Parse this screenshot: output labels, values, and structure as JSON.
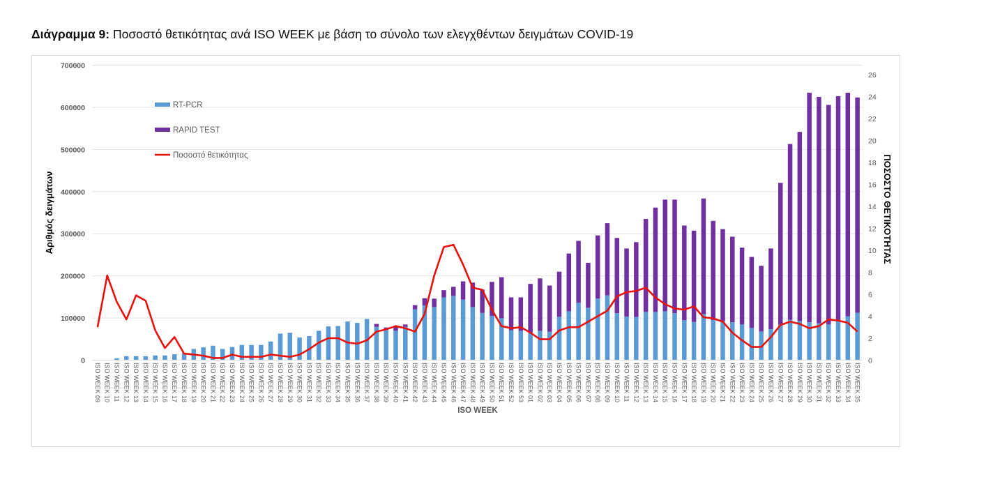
{
  "title": {
    "prefix": "Διάγραμμα 9:",
    "text": " Ποσοστό θετικότητας ανά ISO WEEK με βάση το σύνολο των ελεγχθέντων δειγμάτων COVID-19"
  },
  "colors": {
    "rt_pcr": "#5B9BD5",
    "rapid_test": "#7030A0",
    "positivity": "#E8120C",
    "grid": "#e3e3e3"
  },
  "chart_data": {
    "type": "bar+line",
    "title": "Ποσοστό θετικότητας ανά ISO WEEK με βάση το σύνολο των ελεγχθέντων δειγμάτων COVID-19",
    "xlabel": "ISO WEEK",
    "ylabel": "Αριθμός δειγμάτων",
    "y2label": "ΠΟΣΟΣΤΟ ΘΕΤΙΚΟΤΗΤΑΣ",
    "ylim": [
      0,
      700000
    ],
    "y2lim": [
      0,
      26
    ],
    "yticks": [
      "0",
      "100000",
      "200000",
      "300000",
      "400000",
      "500000",
      "600000",
      "700000"
    ],
    "y2ticks": [
      "0",
      "2",
      "4",
      "6",
      "8",
      "10",
      "12",
      "14",
      "16",
      "18",
      "20",
      "22",
      "24",
      "26"
    ],
    "grid": true,
    "legend_position": "top-left",
    "categories": [
      "ISO WEEK 09",
      "ISO WEEK 10",
      "ISO WEEK 11",
      "ISO WEEK 12",
      "ISO WEEK 13",
      "ISO WEEK 14",
      "ISO WEEK 15",
      "ISO WEEK 16",
      "ISO WEEK 17",
      "ISO WEEK 18",
      "ISO WEEK 19",
      "ISO WEEK 20",
      "ISO WEEK 21",
      "ISO WEEK 22",
      "ISO WEEK 23",
      "ISO WEEK 24",
      "ISO WEEK 25",
      "ISO WEEK 26",
      "ISO WEEK 27",
      "ISO WEEK 28",
      "ISO WEEK 29",
      "ISO WEEK 30",
      "ISO WEEK 31",
      "ISO WEEK 32",
      "ISO WEEK 33",
      "ISO WEEK 34",
      "ISO WEEK 35",
      "ISO WEEK 36",
      "ISO WEEK 37",
      "ISO WEEK 38",
      "ISO WEEK 39",
      "ISO WEEK 40",
      "ISO WEEK 41",
      "ISO WEEK 42",
      "ISO WEEK 43",
      "ISO WEEK 44",
      "ISO WEEK 45",
      "ISO WEEK 46",
      "ISO WEEK 47",
      "ISO WEEK 48",
      "ISO WEEK 49",
      "ISO WEEK 50",
      "ISO WEEK 51",
      "ISO WEEK 52",
      "ISO WEEK 53",
      "ISO WEEK 01",
      "ISO WEEK 02",
      "ISO WEEK 03",
      "ISO WEEK 04",
      "ISO WEEK 05",
      "ISO WEEK 06",
      "ISO WEEK 07",
      "ISO WEEK 08",
      "ISO WEEK 09",
      "ISO WEEK 10",
      "ISO WEEK 11",
      "ISO WEEK 12",
      "ISO WEEK 13",
      "ISO WEEK 14",
      "ISO WEEK 15",
      "ISO WEEK 16",
      "ISO WEEK 17",
      "ISO WEEK 18",
      "ISO WEEK 19",
      "ISO WEEK 20",
      "ISO WEEK 21",
      "ISO WEEK 22",
      "ISO WEEK 23",
      "ISO WEEK 24",
      "ISO WEEK 25",
      "ISO WEEK 26",
      "ISO WEEK 27",
      "ISO WEEK 28",
      "ISO WEEK 29",
      "ISO WEEK 30",
      "ISO WEEK 31",
      "ISO WEEK 32",
      "ISO WEEK 33",
      "ISO WEEK 34",
      "ISO WEEK 35"
    ],
    "series": [
      {
        "name": "RT-PCR",
        "type": "stacked-bar",
        "axis": "left",
        "values": [
          0,
          0,
          4400,
          9400,
          9400,
          9400,
          11100,
          11100,
          13800,
          16600,
          26500,
          30400,
          34300,
          26500,
          31000,
          36000,
          36000,
          36000,
          44200,
          63000,
          65000,
          53600,
          57000,
          69600,
          80000,
          81000,
          91700,
          88400,
          97800,
          79000,
          74000,
          69600,
          79000,
          120500,
          130000,
          126000,
          149000,
          152500,
          143600,
          126000,
          112000,
          105000,
          99500,
          70800,
          69600,
          65200,
          69600,
          67400,
          102800,
          116000,
          136000,
          124400,
          146000,
          153700,
          111600,
          103300,
          102300,
          114400,
          114400,
          116000,
          111600,
          95000,
          90700,
          109500,
          95000,
          92800,
          90000,
          84600,
          76300,
          68000,
          73500,
          84600,
          95700,
          92800,
          90000,
          87400,
          84600,
          95700,
          104000,
          112300
        ]
      },
      {
        "name": "RAPID TEST",
        "type": "stacked-bar",
        "axis": "left",
        "values": [
          0,
          0,
          0,
          0,
          0,
          0,
          0,
          0,
          0,
          0,
          0,
          0,
          0,
          0,
          0,
          0,
          0,
          0,
          0,
          0,
          0,
          0,
          0,
          0,
          0,
          0,
          0,
          0,
          0,
          7000,
          3400,
          11200,
          5600,
          10000,
          17000,
          20000,
          17000,
          21500,
          43400,
          58000,
          55500,
          80700,
          97300,
          78200,
          79400,
          115800,
          124400,
          109600,
          107200,
          137000,
          147000,
          106600,
          150000,
          171300,
          178400,
          161700,
          177700,
          220600,
          247600,
          265000,
          269400,
          224500,
          216600,
          274100,
          235500,
          218200,
          203000,
          182400,
          168700,
          156000,
          191500,
          336100,
          417300,
          448900,
          544700,
          537300,
          521200,
          530600,
          530700,
          511200
        ]
      },
      {
        "name": "Ποσοστό θετικότητας",
        "type": "line",
        "axis": "right",
        "values": [
          3.0,
          7.7,
          5.3,
          3.7,
          5.9,
          5.4,
          2.7,
          1.1,
          2.1,
          0.6,
          0.5,
          0.4,
          0.2,
          0.2,
          0.5,
          0.3,
          0.3,
          0.3,
          0.5,
          0.4,
          0.3,
          0.5,
          1.0,
          1.6,
          2.0,
          2.0,
          1.6,
          1.5,
          1.8,
          2.6,
          2.8,
          3.1,
          2.9,
          2.6,
          4.2,
          7.7,
          10.3,
          10.5,
          8.7,
          6.6,
          6.4,
          4.6,
          3.1,
          2.9,
          3.0,
          2.5,
          1.9,
          1.9,
          2.7,
          3.0,
          3.0,
          3.5,
          4.0,
          4.5,
          5.8,
          6.2,
          6.3,
          6.6,
          5.7,
          5.1,
          4.7,
          4.6,
          4.9,
          3.9,
          3.8,
          3.5,
          2.5,
          1.8,
          1.2,
          1.2,
          2.1,
          3.2,
          3.5,
          3.3,
          2.9,
          3.1,
          3.7,
          3.6,
          3.4,
          2.6
        ]
      }
    ]
  }
}
